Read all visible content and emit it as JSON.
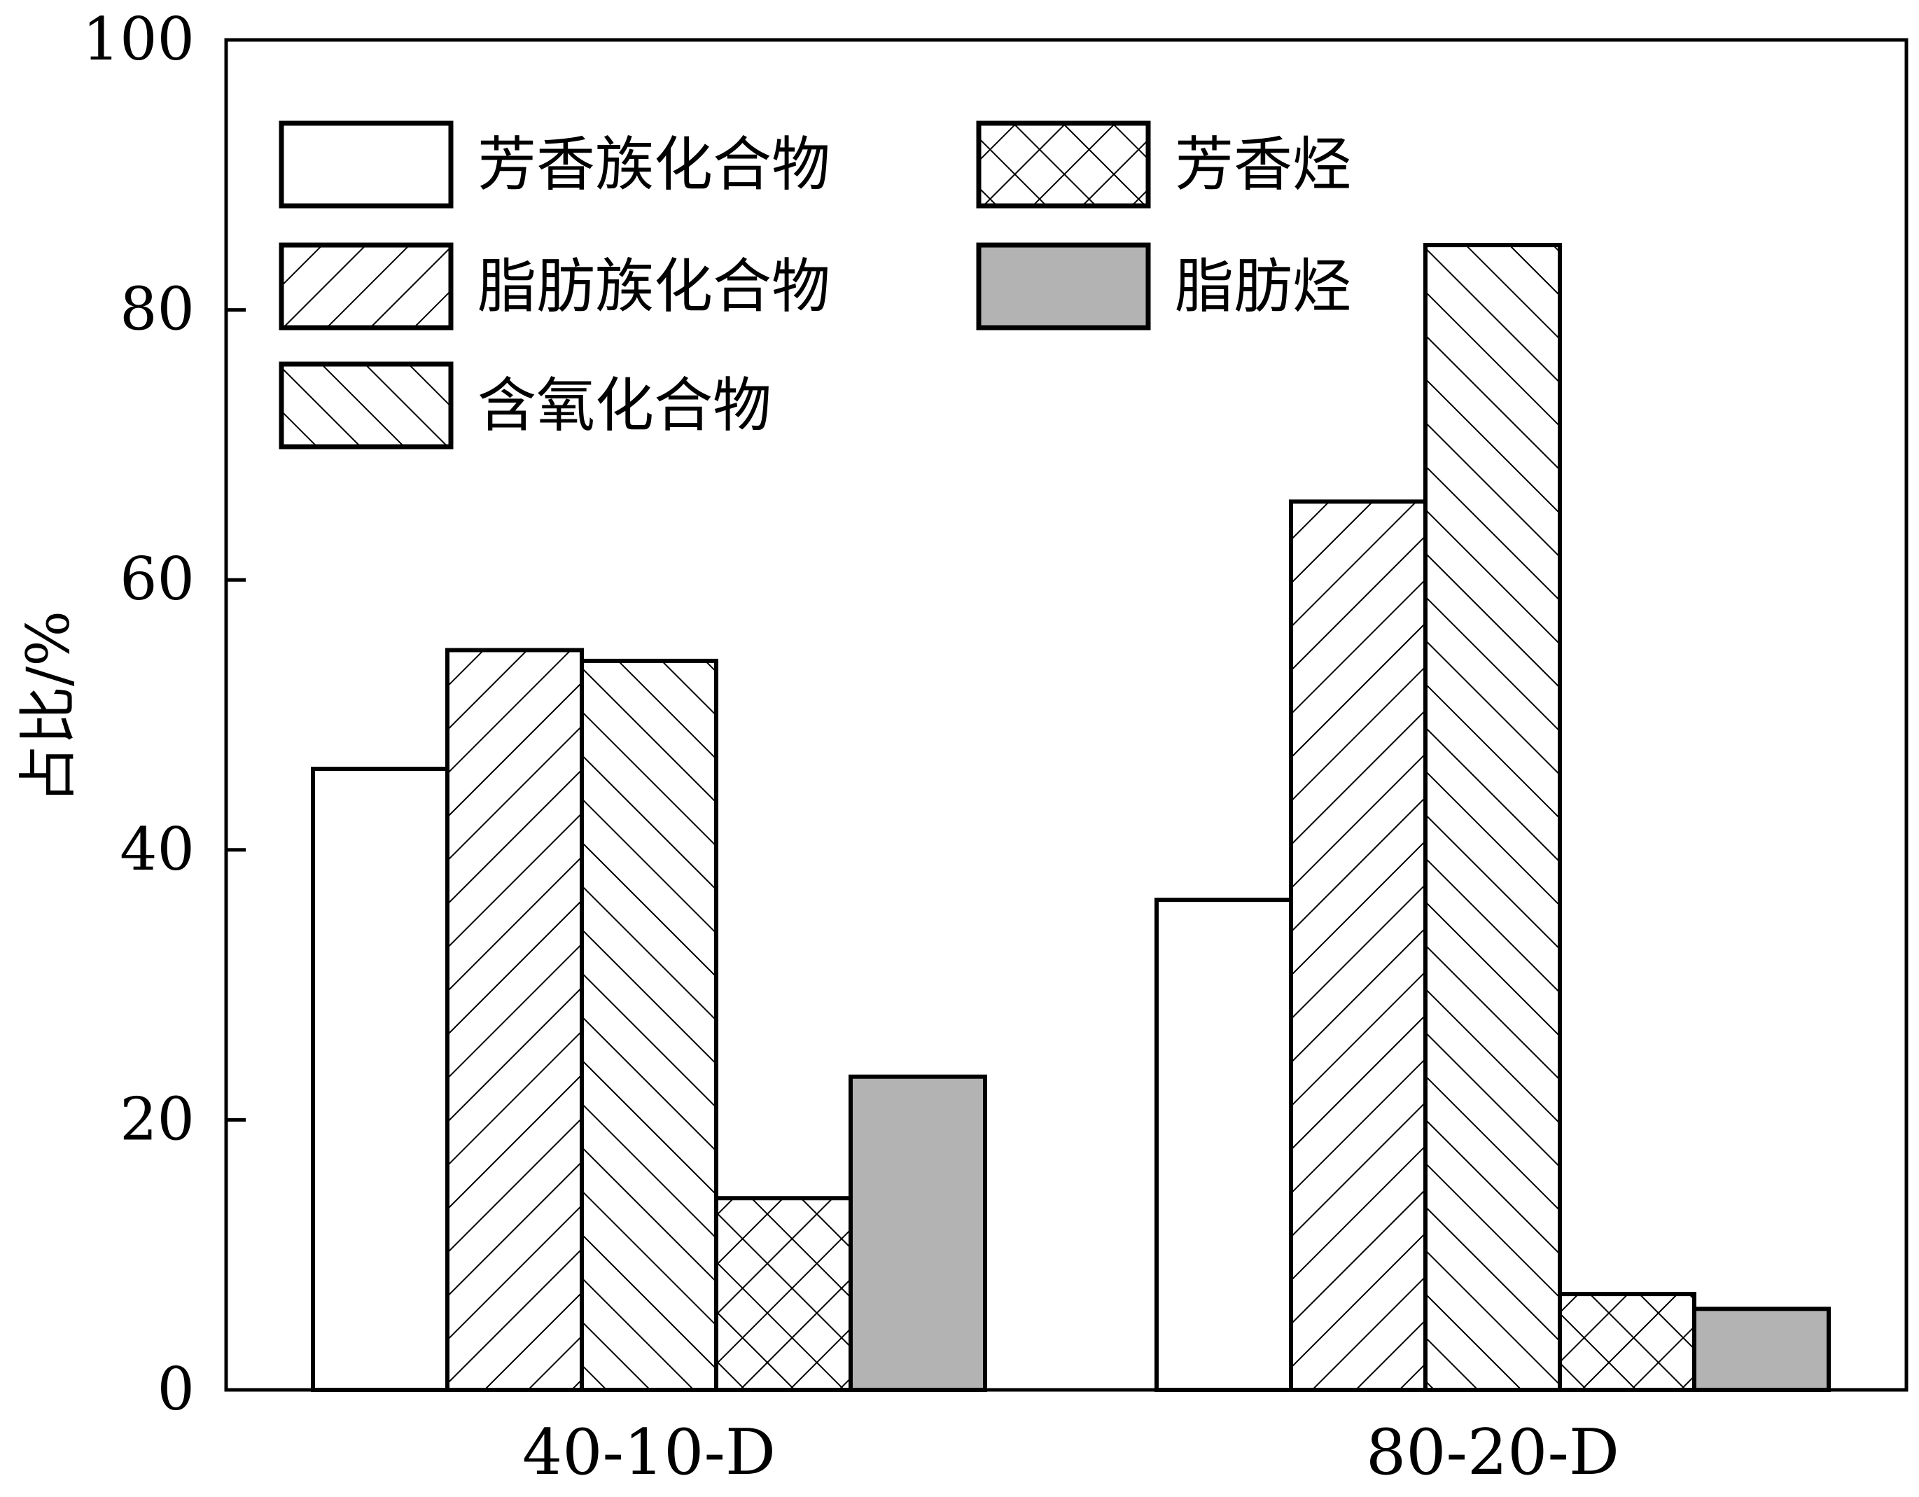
{
  "chart_data": {
    "type": "bar",
    "categories": [
      "40-10-D",
      "80-20-D"
    ],
    "series": [
      {
        "name": "芳香族化合物",
        "values": [
          46.0,
          36.3
        ],
        "fill": "white"
      },
      {
        "name": "脂肪族化合物",
        "values": [
          54.8,
          65.8
        ],
        "fill": "hatch-forward"
      },
      {
        "name": "含氧化合物",
        "values": [
          54.0,
          84.8
        ],
        "fill": "hatch-backward"
      },
      {
        "name": "芳香烃",
        "values": [
          14.2,
          7.1
        ],
        "fill": "crosshatch"
      },
      {
        "name": "脂肪烃",
        "values": [
          23.2,
          6.0
        ],
        "fill": "gray"
      }
    ],
    "ylabel": "占比/%",
    "xlabel": "",
    "ylim": [
      0,
      100
    ],
    "yticks": [
      0,
      20,
      40,
      60,
      80,
      100
    ],
    "grid": false,
    "legend_position": "top-left",
    "colors": {
      "gray_fill": "#b3b3b3",
      "stroke": "#000000",
      "background": "#ffffff"
    }
  }
}
